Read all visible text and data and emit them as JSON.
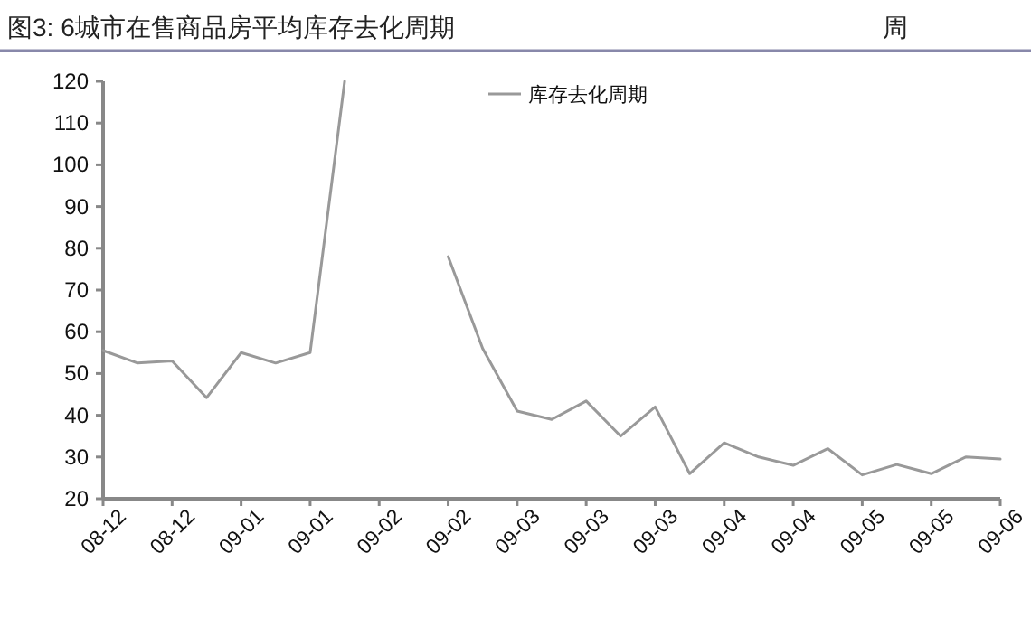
{
  "chart_data": {
    "type": "line",
    "title": "图3:  6城市在售商品房平均库存去化周期",
    "ylabel": "周",
    "categories": [
      "08-12",
      null,
      "08-12",
      null,
      "09-01",
      null,
      "09-01",
      null,
      "09-02",
      null,
      "09-02",
      null,
      "09-03",
      null,
      "09-03",
      null,
      "09-03",
      null,
      "09-04",
      null,
      "09-04",
      null,
      "09-05",
      null,
      "09-05",
      null,
      "09-06"
    ],
    "series": [
      {
        "name": "库存去化周期",
        "color": "#999999",
        "values": [
          55.5,
          52.5,
          53,
          44.2,
          55,
          52.5,
          55,
          120,
          null,
          null,
          78,
          56,
          41,
          39,
          43.4,
          35,
          42,
          26,
          33.4,
          30,
          28,
          32,
          25.7,
          28.2,
          26,
          30,
          29.5
        ]
      }
    ],
    "ylim": [
      20,
      120
    ],
    "yticks": [
      20,
      30,
      40,
      50,
      60,
      70,
      80,
      90,
      100,
      110,
      120
    ],
    "legend": "top right",
    "line_style": "solid"
  }
}
